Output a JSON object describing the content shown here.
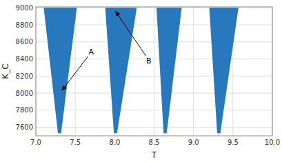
{
  "chart_data": {
    "type": "polygon",
    "title": "",
    "xlabel": "T",
    "ylabel": "K_C",
    "xlim": [
      7,
      10
    ],
    "ylim": [
      7500,
      9010
    ],
    "xticks": [
      {
        "value": 7,
        "label": "7.0"
      },
      {
        "value": 7.5,
        "label": "7.5"
      },
      {
        "value": 8,
        "label": "8.0"
      },
      {
        "value": 8.5,
        "label": "8.5"
      },
      {
        "value": 9,
        "label": "9.0"
      },
      {
        "value": 9.5,
        "label": "9.5"
      },
      {
        "value": 10,
        "label": "10.0"
      }
    ],
    "yticks": [
      7600,
      7800,
      8000,
      8200,
      8400,
      8600,
      8800,
      9000
    ],
    "grid": true,
    "color": "#2878BE",
    "series": [
      {
        "x": [
          7.1,
          7.52,
          7.32,
          7.28
        ],
        "values": [
          9000,
          9000,
          7530,
          7530
        ]
      },
      {
        "x": [
          7.88,
          8.28,
          8.03,
          7.99
        ],
        "values": [
          9000,
          9000,
          7530,
          7530
        ]
      },
      {
        "x": [
          8.53,
          8.85,
          8.66,
          8.62
        ],
        "values": [
          9000,
          9000,
          7530,
          7530
        ]
      },
      {
        "x": [
          9.2,
          9.57,
          9.34,
          9.3
        ],
        "values": [
          9000,
          9000,
          7530,
          7530
        ]
      }
    ],
    "annotations": [
      {
        "text": "A",
        "x": 7.67,
        "y": 8450,
        "arrow_x": 7.33,
        "arrow_y": 8030,
        "color": "#000000"
      },
      {
        "text": "B",
        "x": 8.4,
        "y": 8350,
        "arrow_x": 8.01,
        "arrow_y": 8960,
        "color": "#000000"
      }
    ]
  }
}
